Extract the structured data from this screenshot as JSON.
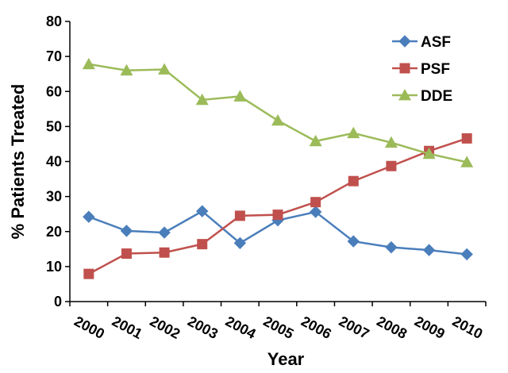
{
  "chart_data": {
    "type": "line",
    "xlabel": "Year",
    "ylabel": "% Patients Treated",
    "ylim": [
      0,
      80
    ],
    "yticks": [
      "0",
      "10",
      "20",
      "30",
      "40",
      "50",
      "60",
      "70",
      "80"
    ],
    "categories": [
      "2000",
      "2001",
      "2002",
      "2003",
      "2004",
      "2005",
      "2006",
      "2007",
      "2008",
      "2009",
      "2010"
    ],
    "grid": false,
    "legend_position": "top-right",
    "series": [
      {
        "name": "ASF",
        "color": "#4a7ebb",
        "marker": "diamond",
        "values": [
          24.2,
          20.2,
          19.7,
          25.8,
          16.7,
          23.2,
          25.6,
          17.2,
          15.5,
          14.7,
          13.5
        ]
      },
      {
        "name": "PSF",
        "color": "#c0504d",
        "marker": "square",
        "values": [
          7.9,
          13.7,
          14.0,
          16.4,
          24.5,
          24.8,
          28.4,
          34.4,
          38.7,
          43.0,
          46.6
        ]
      },
      {
        "name": "DDE",
        "color": "#9bbb59",
        "marker": "triangle",
        "values": [
          67.8,
          66.0,
          66.3,
          57.6,
          58.6,
          51.7,
          45.8,
          48.1,
          45.4,
          42.2,
          39.8
        ]
      }
    ]
  }
}
